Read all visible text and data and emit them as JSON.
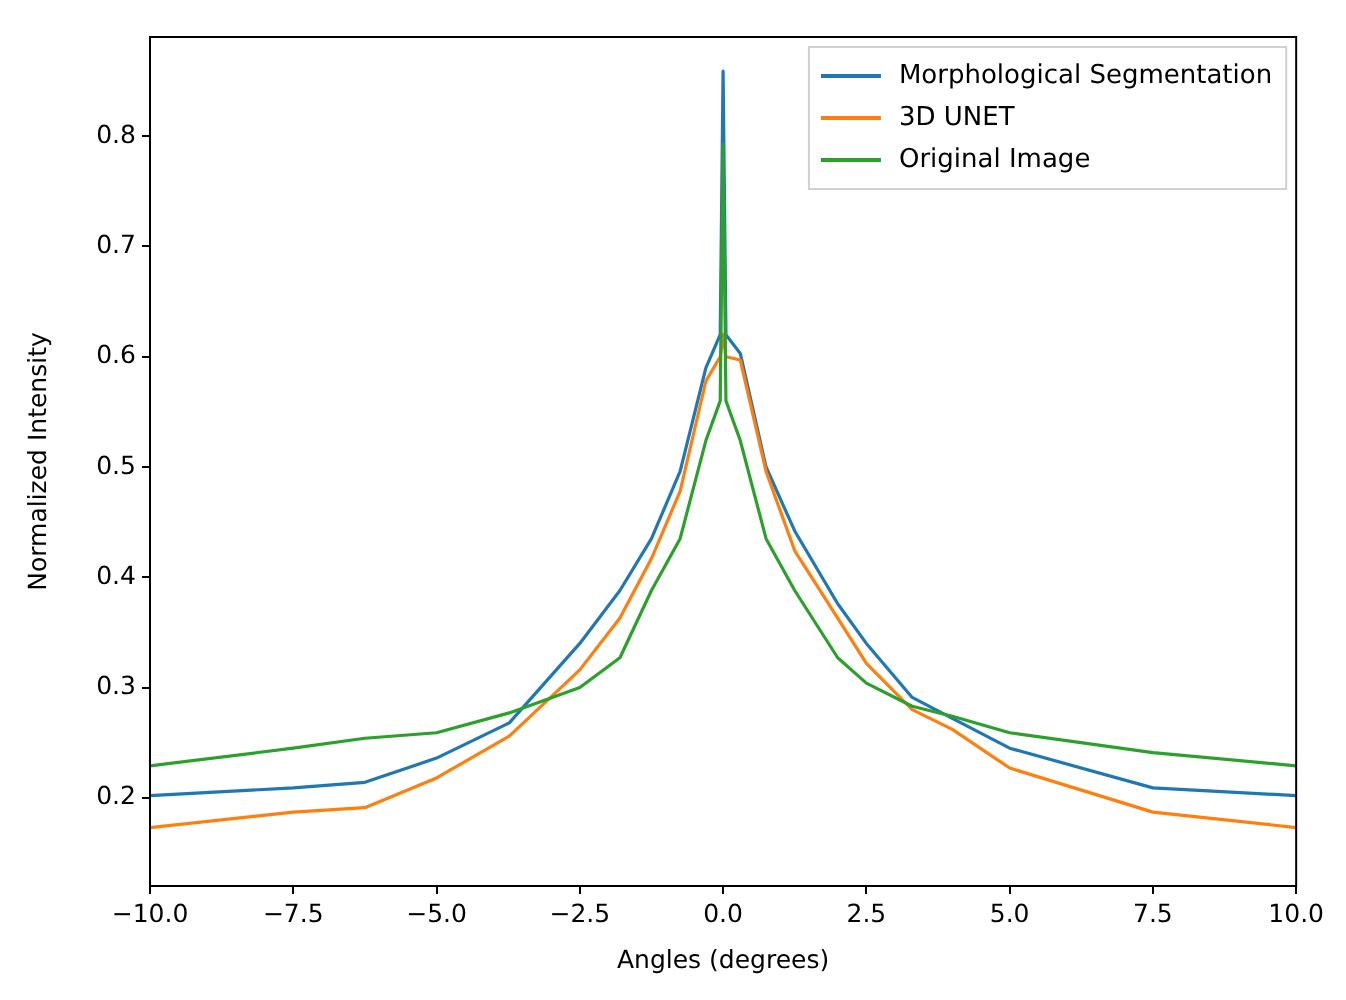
{
  "chart_data": {
    "type": "line",
    "xlabel": "Angles (degrees)",
    "ylabel": "Normalized Intensity",
    "xlim": [
      -10,
      10
    ],
    "ylim": [
      0.12,
      0.89
    ],
    "xticks": [
      {
        "value": -10,
        "label": "−10.0"
      },
      {
        "value": -7.5,
        "label": "−7.5"
      },
      {
        "value": -5,
        "label": "−5.0"
      },
      {
        "value": -2.5,
        "label": "−2.5"
      },
      {
        "value": 0,
        "label": "0.0"
      },
      {
        "value": 2.5,
        "label": "2.5"
      },
      {
        "value": 5,
        "label": "5.0"
      },
      {
        "value": 7.5,
        "label": "7.5"
      },
      {
        "value": 10,
        "label": "10.0"
      }
    ],
    "yticks": [
      0.2,
      0.3,
      0.4,
      0.5,
      0.6,
      0.7,
      0.8
    ],
    "x": [
      -10,
      -7.5,
      -6.25,
      -5,
      -3.73,
      -2.5,
      -1.8,
      -1.25,
      -0.75,
      -0.3,
      -0.05,
      0,
      0.05,
      0.3,
      0.75,
      1.25,
      2,
      2.5,
      3.3,
      4,
      5,
      7.5,
      10
    ],
    "series": [
      {
        "name": "Morphological Segmentation",
        "color": "#1f77b4",
        "values": [
          0.202,
          0.209,
          0.214,
          0.236,
          0.268,
          0.34,
          0.388,
          0.435,
          0.496,
          0.59,
          0.62,
          0.859,
          0.62,
          0.603,
          0.5,
          0.442,
          0.376,
          0.34,
          0.291,
          0.272,
          0.245,
          0.209,
          0.202
        ]
      },
      {
        "name": "3D UNET",
        "color": "#ff7f0e",
        "values": [
          0.173,
          0.187,
          0.191,
          0.218,
          0.256,
          0.316,
          0.363,
          0.417,
          0.478,
          0.578,
          0.6,
          0.62,
          0.6,
          0.597,
          0.496,
          0.424,
          0.363,
          0.322,
          0.28,
          0.262,
          0.227,
          0.187,
          0.173
        ]
      },
      {
        "name": "Original Image",
        "color": "#2ca02c",
        "values": [
          0.229,
          0.245,
          0.254,
          0.259,
          0.277,
          0.3,
          0.327,
          0.388,
          0.435,
          0.524,
          0.56,
          0.793,
          0.56,
          0.524,
          0.435,
          0.388,
          0.327,
          0.304,
          0.283,
          0.274,
          0.259,
          0.241,
          0.229
        ]
      }
    ],
    "legend": "top right",
    "grid": false,
    "marker": "none",
    "line_style": "solid"
  }
}
